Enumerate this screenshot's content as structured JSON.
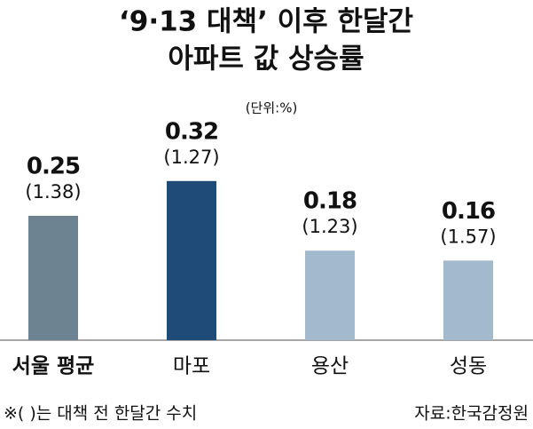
{
  "chart_data": {
    "type": "bar",
    "title_lines": [
      "‘9·13 대책’ 이후 한달간",
      "아파트 값 상승률"
    ],
    "unit": "(단위:%)",
    "categories": [
      "서울 평균",
      "마포",
      "용산",
      "성동"
    ],
    "values": [
      0.25,
      0.32,
      0.18,
      0.16
    ],
    "annotations": [
      "(1.38)",
      "(1.27)",
      "(1.23)",
      "(1.57)"
    ],
    "colors": [
      "#6e8392",
      "#1e4b78",
      "#a3b9cd",
      "#a3b9cd"
    ],
    "ylim": [
      0,
      0.55
    ],
    "footnote": "※(  )는 대책 전 한달간 수치",
    "source": "자료:한국감정원"
  }
}
